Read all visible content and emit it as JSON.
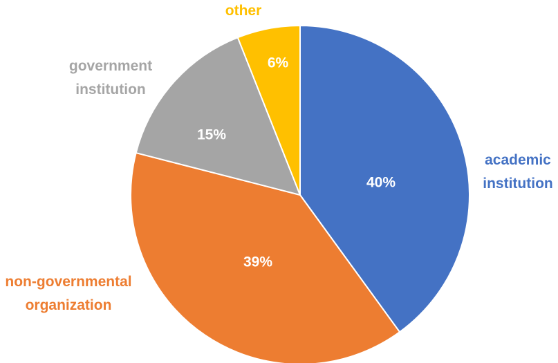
{
  "chart_data": {
    "type": "pie",
    "title": "",
    "legend": "none",
    "slices": [
      {
        "label_lines": [
          "academic",
          "institution"
        ],
        "value": 40,
        "value_label": "40%",
        "color": "#4472C4"
      },
      {
        "label_lines": [
          "non-governmental",
          "organization"
        ],
        "value": 39,
        "value_label": "39%",
        "color": "#ED7D31"
      },
      {
        "label_lines": [
          "government",
          "institution"
        ],
        "value": 15,
        "value_label": "15%",
        "color": "#A5A5A5"
      },
      {
        "label_lines": [
          "other"
        ],
        "value": 6,
        "value_label": "6%",
        "color": "#FFC000"
      }
    ]
  }
}
